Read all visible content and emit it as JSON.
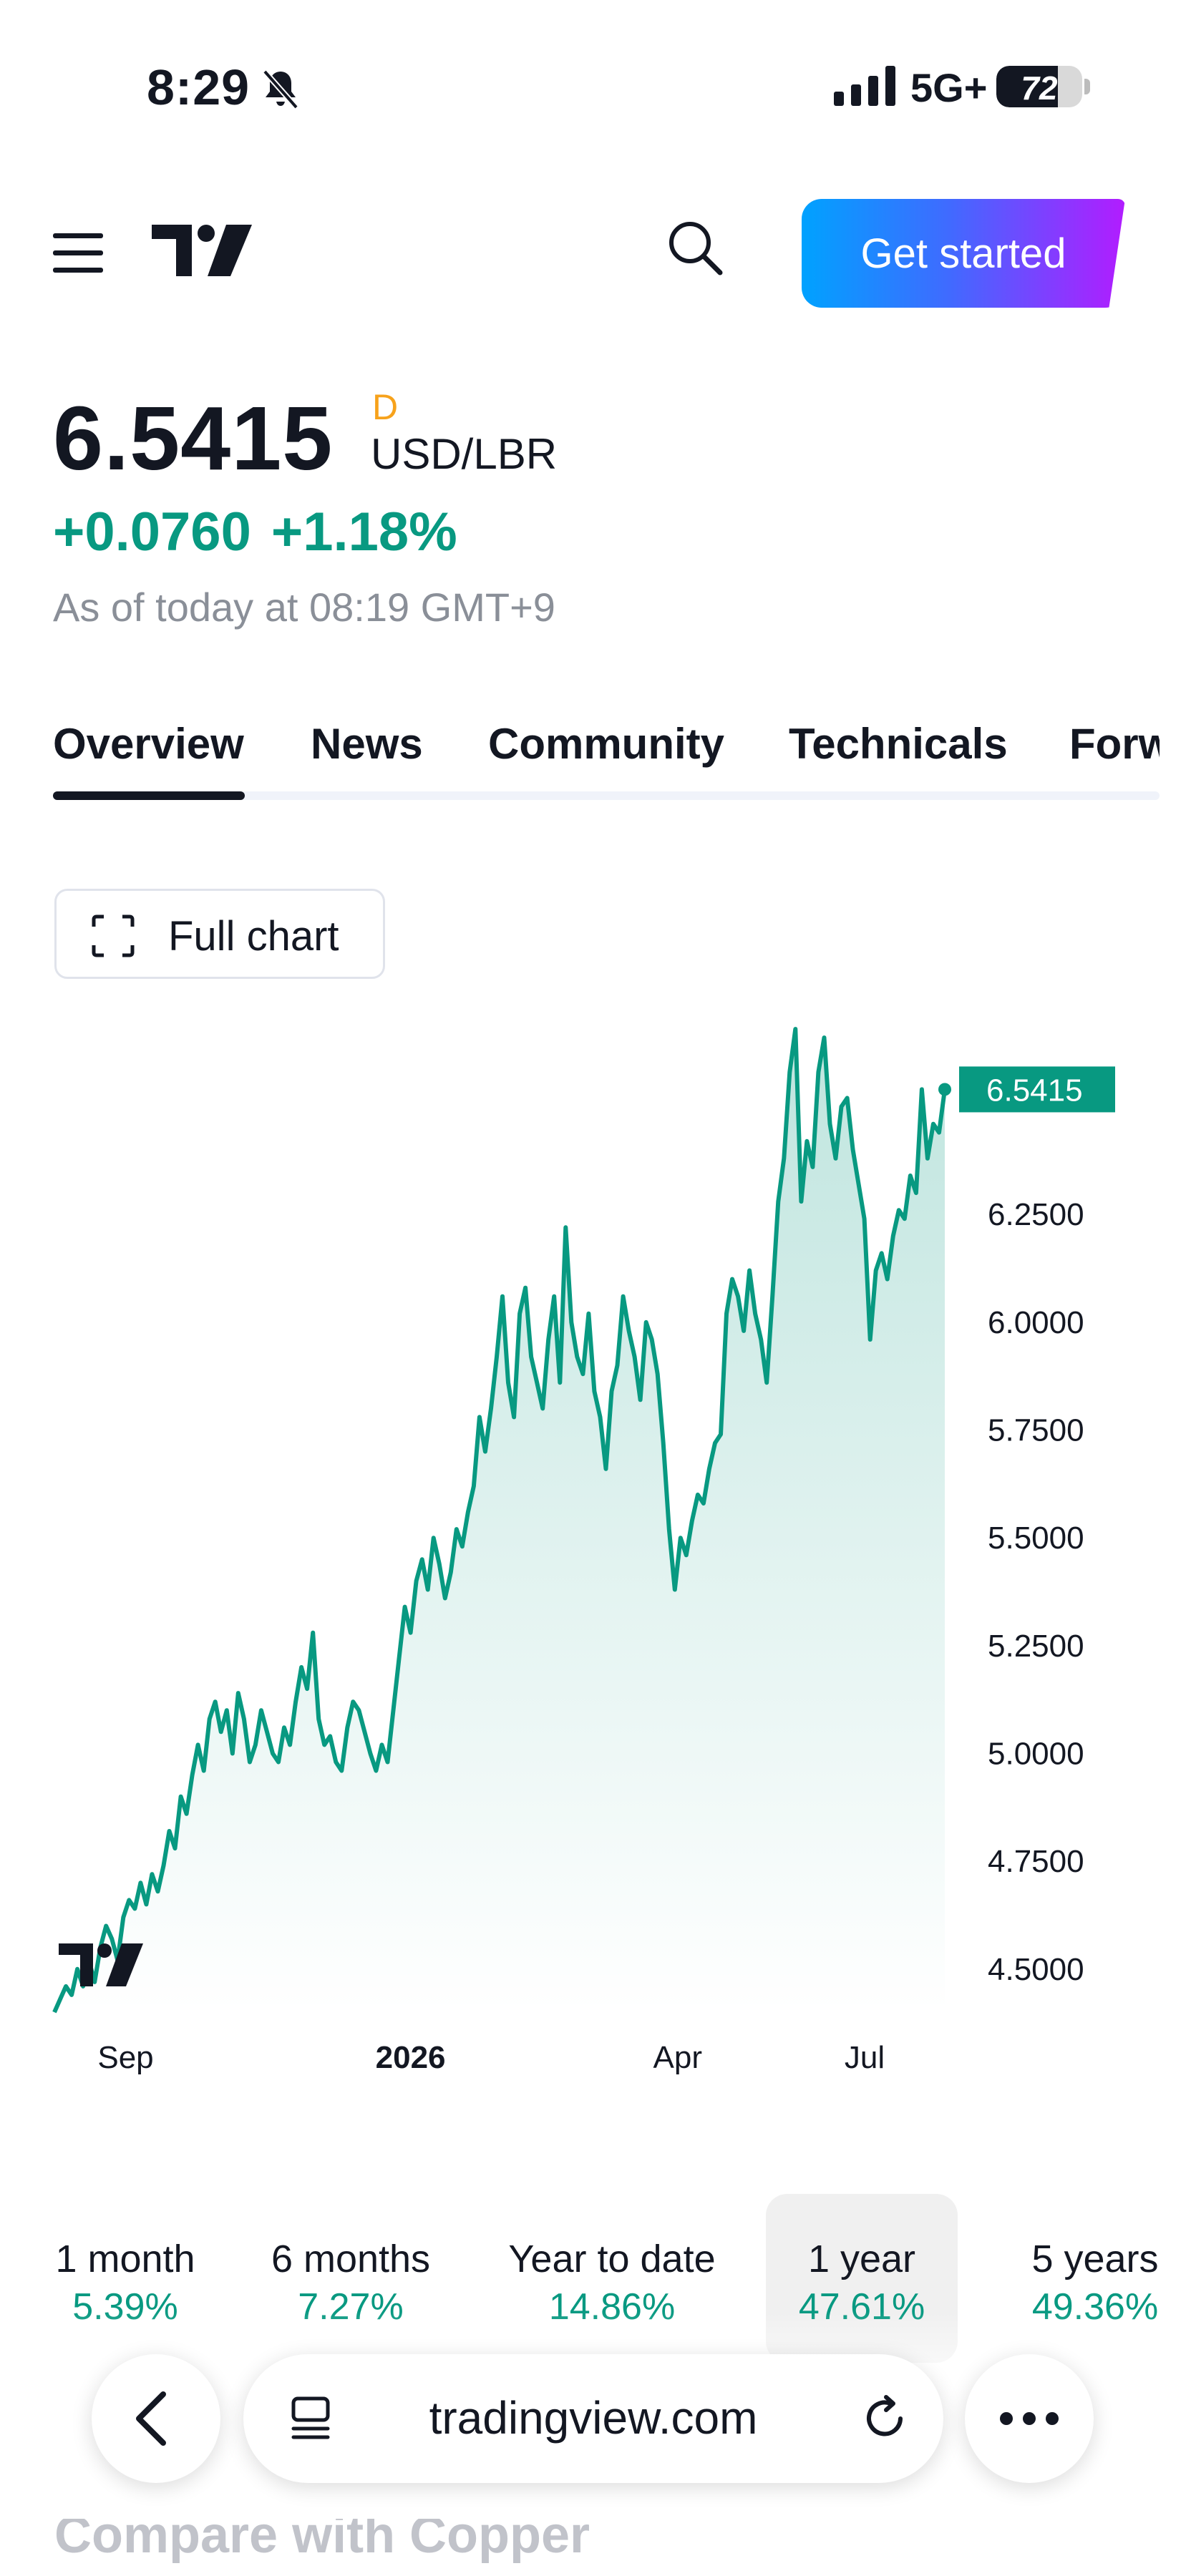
{
  "status_bar": {
    "time": "8:29",
    "network": "5G+",
    "battery": "72",
    "battery_level": 0.72
  },
  "header": {
    "logo": "TradingView",
    "cta_label": "Get started"
  },
  "quote": {
    "price": "6.5415",
    "flag": "D",
    "pair": "USD/LBR",
    "change_abs": "+0.0760",
    "change_pct": "+1.18%",
    "as_of": "As of today at 08:19 GMT+9"
  },
  "tabs": [
    {
      "label": "Overview",
      "active": true
    },
    {
      "label": "News"
    },
    {
      "label": "Community"
    },
    {
      "label": "Technicals"
    },
    {
      "label": "Forw"
    }
  ],
  "full_chart_label": "Full chart",
  "chart_data": {
    "type": "area",
    "x_ticks": [
      {
        "label": "Sep",
        "bold": false
      },
      {
        "label": "2026",
        "bold": true
      },
      {
        "label": "Apr",
        "bold": false
      },
      {
        "label": "Jul",
        "bold": false
      }
    ],
    "y_ticks": [
      "4.5000",
      "4.7500",
      "5.0000",
      "5.2500",
      "5.5000",
      "5.7500",
      "6.0000",
      "6.2500"
    ],
    "ylim": [
      4.42,
      6.71
    ],
    "last_value_label": "6.5415",
    "line_color": "#089981",
    "values": [
      4.4,
      4.43,
      4.46,
      4.44,
      4.5,
      4.46,
      4.52,
      4.47,
      4.55,
      4.6,
      4.57,
      4.52,
      4.62,
      4.66,
      4.64,
      4.7,
      4.65,
      4.72,
      4.68,
      4.74,
      4.82,
      4.78,
      4.9,
      4.86,
      4.95,
      5.02,
      4.96,
      5.08,
      5.12,
      5.05,
      5.1,
      5.0,
      5.14,
      5.08,
      4.98,
      5.02,
      5.1,
      5.05,
      5.0,
      4.98,
      5.06,
      5.02,
      5.12,
      5.2,
      5.15,
      5.28,
      5.08,
      5.02,
      5.04,
      4.98,
      4.96,
      5.06,
      5.12,
      5.1,
      5.05,
      5.0,
      4.96,
      5.02,
      4.98,
      5.1,
      5.22,
      5.34,
      5.28,
      5.4,
      5.45,
      5.38,
      5.5,
      5.44,
      5.36,
      5.42,
      5.52,
      5.48,
      5.56,
      5.62,
      5.78,
      5.7,
      5.8,
      5.92,
      6.06,
      5.86,
      5.78,
      6.02,
      6.08,
      5.92,
      5.86,
      5.8,
      5.96,
      6.06,
      5.86,
      6.22,
      6.0,
      5.92,
      5.88,
      6.02,
      5.84,
      5.78,
      5.66,
      5.84,
      5.9,
      6.06,
      5.98,
      5.92,
      5.82,
      6.0,
      5.96,
      5.88,
      5.72,
      5.52,
      5.38,
      5.5,
      5.46,
      5.54,
      5.6,
      5.58,
      5.66,
      5.72,
      5.74,
      6.02,
      6.1,
      6.06,
      5.98,
      6.12,
      6.02,
      5.96,
      5.86,
      6.06,
      6.28,
      6.38,
      6.58,
      6.68,
      6.28,
      6.42,
      6.36,
      6.58,
      6.66,
      6.46,
      6.38,
      6.5,
      6.52,
      6.4,
      6.32,
      6.24,
      5.96,
      6.12,
      6.16,
      6.1,
      6.2,
      6.26,
      6.24,
      6.34,
      6.3,
      6.54,
      6.38,
      6.46,
      6.44,
      6.54
    ]
  },
  "periods": [
    {
      "label": "1 month",
      "value": "5.39%"
    },
    {
      "label": "6 months",
      "value": "7.27%"
    },
    {
      "label": "Year to date",
      "value": "14.86%"
    },
    {
      "label": "1 year",
      "value": "47.61%",
      "active": true
    },
    {
      "label": "5 years",
      "value": "49.36%"
    }
  ],
  "browser": {
    "url": "tradingview.com"
  },
  "compare_label": "Compare with Copper"
}
